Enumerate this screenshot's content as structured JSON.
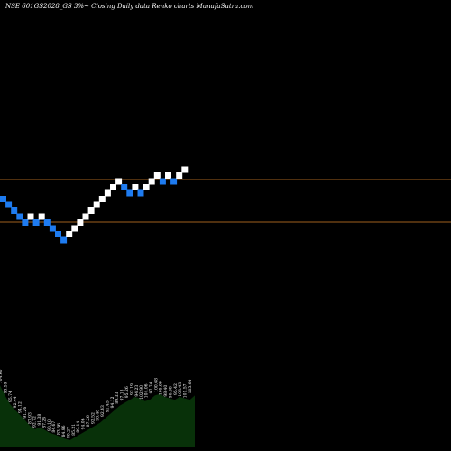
{
  "header": {
    "title": "NSE 601GS2028_GS 3%~   Closing Daily data  Renko  charts MunafaSutra.com"
  },
  "colors": {
    "background": "#000000",
    "up_brick": "#ffffff",
    "down_brick": "#1e7bf0",
    "level_line": "#a0601e",
    "volume_fill": "#0b2a0b",
    "volume_fill_bright": "#0f5a10"
  },
  "chart_data": {
    "type": "renko",
    "bricks": [
      {
        "dir": "down",
        "level": 0
      },
      {
        "dir": "down",
        "level": -1
      },
      {
        "dir": "down",
        "level": -2
      },
      {
        "dir": "down",
        "level": -3
      },
      {
        "dir": "down",
        "level": -4
      },
      {
        "dir": "up",
        "level": -3
      },
      {
        "dir": "down",
        "level": -4
      },
      {
        "dir": "up",
        "level": -3
      },
      {
        "dir": "down",
        "level": -4
      },
      {
        "dir": "down",
        "level": -5
      },
      {
        "dir": "down",
        "level": -6
      },
      {
        "dir": "down",
        "level": -7
      },
      {
        "dir": "up",
        "level": -6
      },
      {
        "dir": "up",
        "level": -5
      },
      {
        "dir": "up",
        "level": -4
      },
      {
        "dir": "up",
        "level": -3
      },
      {
        "dir": "up",
        "level": -2
      },
      {
        "dir": "up",
        "level": -1
      },
      {
        "dir": "up",
        "level": 0
      },
      {
        "dir": "up",
        "level": 1
      },
      {
        "dir": "up",
        "level": 2
      },
      {
        "dir": "up",
        "level": 3
      },
      {
        "dir": "down",
        "level": 2
      },
      {
        "dir": "down",
        "level": 1
      },
      {
        "dir": "up",
        "level": 2
      },
      {
        "dir": "down",
        "level": 1
      },
      {
        "dir": "up",
        "level": 2
      },
      {
        "dir": "up",
        "level": 3
      },
      {
        "dir": "up",
        "level": 4
      },
      {
        "dir": "down",
        "level": 3
      },
      {
        "dir": "up",
        "level": 4
      },
      {
        "dir": "down",
        "level": 3
      },
      {
        "dir": "up",
        "level": 4
      },
      {
        "dir": "up",
        "level": 5
      }
    ],
    "volume": {
      "labels": [
        "104.60",
        "93.59",
        "95.74",
        "92.44",
        "94.12",
        "91.26",
        "87.93",
        "92.72",
        "91.38",
        "87.26",
        "90.10",
        "84.67",
        "83.66",
        "84.96",
        "80.27",
        "85.21",
        "89.14",
        "94.06",
        "87.26",
        "92.52",
        "98.48",
        "92.43",
        "91.45",
        "94.12",
        "89.33",
        "97.13",
        "95.26",
        "92.19",
        "94.23",
        "102.90",
        "104.06",
        "97.74",
        "100.68",
        "105.99",
        "98.40",
        "96.98",
        "95.42",
        "103.43",
        "101.57",
        "105.64"
      ],
      "heights": [
        0.86,
        0.72,
        0.6,
        0.52,
        0.45,
        0.38,
        0.3,
        0.25,
        0.28,
        0.24,
        0.2,
        0.18,
        0.15,
        0.12,
        0.1,
        0.14,
        0.18,
        0.22,
        0.26,
        0.3,
        0.34,
        0.4,
        0.46,
        0.52,
        0.58,
        0.62,
        0.66,
        0.7,
        0.68,
        0.64,
        0.66,
        0.72,
        0.74,
        0.7,
        0.68,
        0.66,
        0.7,
        0.68,
        0.66,
        0.72
      ]
    }
  }
}
